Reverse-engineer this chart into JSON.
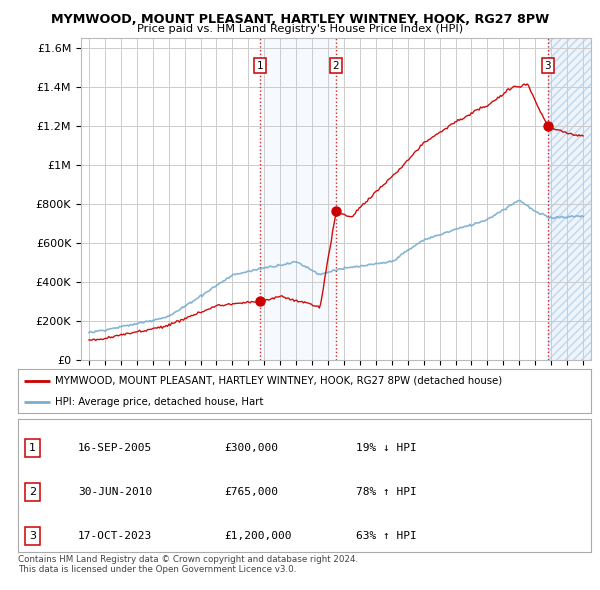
{
  "title": "MYMWOOD, MOUNT PLEASANT, HARTLEY WINTNEY, HOOK, RG27 8PW",
  "subtitle": "Price paid vs. HM Land Registry's House Price Index (HPI)",
  "ylabel_ticks": [
    "£0",
    "£200K",
    "£400K",
    "£600K",
    "£800K",
    "£1M",
    "£1.2M",
    "£1.4M",
    "£1.6M"
  ],
  "ylabel_values": [
    0,
    200000,
    400000,
    600000,
    800000,
    1000000,
    1200000,
    1400000,
    1600000
  ],
  "ylim": [
    0,
    1650000
  ],
  "xlim_start": 1994.5,
  "xlim_end": 2026.5,
  "sale_dates": [
    2005.71,
    2010.5,
    2023.79
  ],
  "sale_prices": [
    300000,
    765000,
    1200000
  ],
  "vline_color": "#cc0000",
  "sale_marker_color": "#cc0000",
  "hpi_color": "#7aadcf",
  "price_color": "#cc0000",
  "shade_color": "#ddeeff",
  "legend_label_price": "MYMWOOD, MOUNT PLEASANT, HARTLEY WINTNEY, HOOK, RG27 8PW (detached house)",
  "legend_label_hpi": "HPI: Average price, detached house, Hart",
  "table_rows": [
    {
      "num": "1",
      "date": "16-SEP-2005",
      "price": "£300,000",
      "pct": "19% ↓ HPI"
    },
    {
      "num": "2",
      "date": "30-JUN-2010",
      "price": "£765,000",
      "pct": "78% ↑ HPI"
    },
    {
      "num": "3",
      "date": "17-OCT-2023",
      "price": "£1,200,000",
      "pct": "63% ↑ HPI"
    }
  ],
  "footnote": "Contains HM Land Registry data © Crown copyright and database right 2024.\nThis data is licensed under the Open Government Licence v3.0.",
  "background_color": "#ffffff",
  "grid_color": "#cccccc",
  "x_ticks": [
    1995,
    1996,
    1997,
    1998,
    1999,
    2000,
    2001,
    2002,
    2003,
    2004,
    2005,
    2006,
    2007,
    2008,
    2009,
    2010,
    2011,
    2012,
    2013,
    2014,
    2015,
    2016,
    2017,
    2018,
    2019,
    2020,
    2021,
    2022,
    2023,
    2024,
    2025,
    2026
  ]
}
